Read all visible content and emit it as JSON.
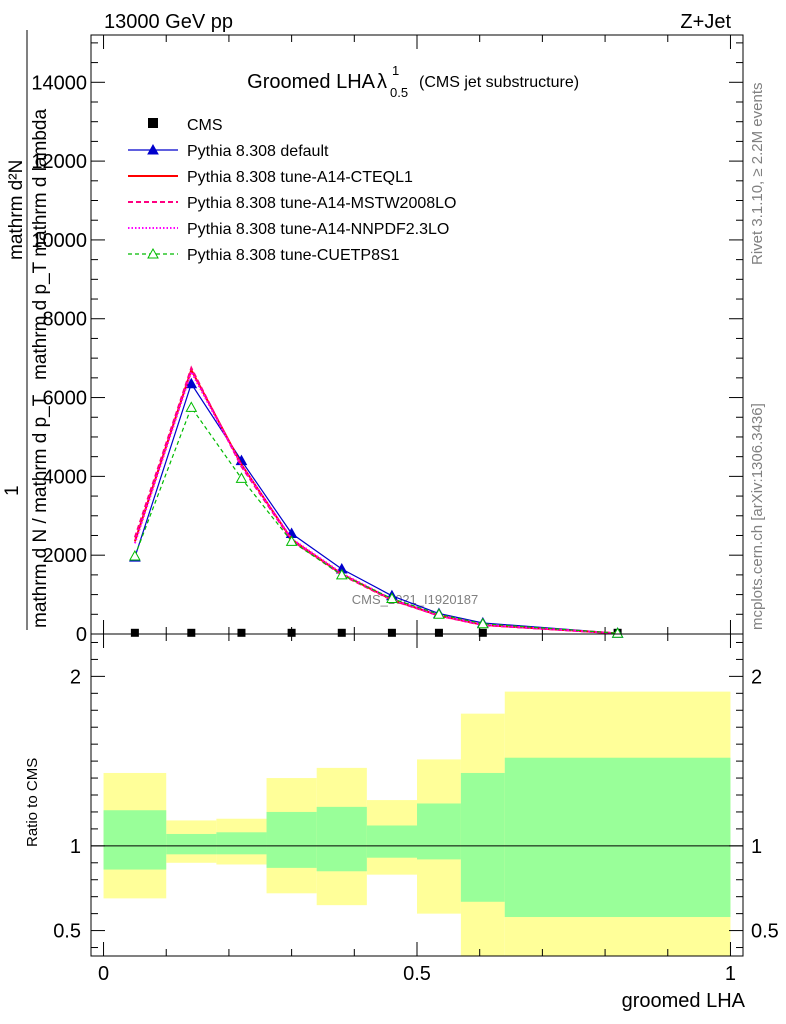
{
  "header": {
    "left": "13000 GeV pp",
    "right": "Z+Jet"
  },
  "side_labels": {
    "rivet": "Rivet 3.1.10, ≥ 2.2M events",
    "mcplots": "mcplots.cern.ch [arXiv:1306.3436]"
  },
  "watermark": "CMS_2021_I1920187",
  "chart_data": [
    {
      "type": "line",
      "title_main": "Groomed LHA",
      "title_lambda": "λ",
      "title_sup": "1",
      "title_sub": "0.5",
      "title_suffix": "(CMS jet substructure)",
      "ylabel_line1": "mathrm d²N",
      "ylabel_line2": "mathrm d p_T mathrm d lambda",
      "ylabel_prefix": "1",
      "ylabel_tail": "mathrm d N / mathrm d p_T",
      "ylim": [
        0,
        15200
      ],
      "xlim": [
        -0.02,
        1.02
      ],
      "yticks": [
        0,
        2000,
        4000,
        6000,
        8000,
        10000,
        12000,
        14000
      ],
      "yticklabels": [
        "0",
        "2000",
        "4000",
        "6000",
        "8000",
        "10000",
        "12000",
        "14000"
      ],
      "x": [
        0.05,
        0.14,
        0.22,
        0.3,
        0.38,
        0.46,
        0.535,
        0.605,
        0.82
      ],
      "series": [
        {
          "name": "CMS",
          "color": "#000000",
          "marker": "square",
          "values": [
            5,
            5,
            5,
            5,
            5,
            5,
            5,
            5,
            5
          ]
        },
        {
          "name": "Pythia 8.308 default",
          "color": "#0000cc",
          "marker": "triangle",
          "values": [
            1950,
            6350,
            4400,
            2550,
            1650,
            970,
            520,
            280,
            20
          ]
        },
        {
          "name": "Pythia 8.308 tune-A14-CTEQL1",
          "color": "#ff0000",
          "marker": "none",
          "values": [
            2350,
            6700,
            4300,
            2400,
            1520,
            870,
            470,
            230,
            15
          ]
        },
        {
          "name": "Pythia 8.308 tune-A14-MSTW2008LO",
          "color": "#ff0080",
          "marker": "none",
          "values": [
            2450,
            6750,
            4250,
            2380,
            1500,
            860,
            465,
            225,
            15
          ]
        },
        {
          "name": "Pythia 8.308 tune-A14-NNPDF2.3LO",
          "color": "#ff00ff",
          "marker": "none",
          "values": [
            2300,
            6650,
            4280,
            2420,
            1540,
            880,
            475,
            235,
            15
          ]
        },
        {
          "name": "Pythia 8.308 tune-CUETP8S1",
          "color": "#00bb00",
          "marker": "triangle-open",
          "values": [
            1980,
            5750,
            3950,
            2350,
            1500,
            900,
            500,
            260,
            20
          ]
        }
      ]
    },
    {
      "type": "band",
      "ylabel": "Ratio to CMS",
      "xlabel": "groomed LHA",
      "ylim": [
        0.35,
        2.25
      ],
      "xlim": [
        -0.02,
        1.02
      ],
      "yticks": [
        0.5,
        1,
        2
      ],
      "yticklabels": [
        "0.5",
        "1",
        "2"
      ],
      "xticks": [
        0,
        0.5,
        1
      ],
      "xticklabels": [
        "0",
        "0.5",
        "1"
      ],
      "reference": 1,
      "bins": [
        {
          "x0": 0.0,
          "x1": 0.1,
          "inner": [
            0.86,
            1.21
          ],
          "outer": [
            0.69,
            1.43
          ]
        },
        {
          "x0": 0.1,
          "x1": 0.18,
          "inner": [
            0.95,
            1.07
          ],
          "outer": [
            0.9,
            1.15
          ]
        },
        {
          "x0": 0.18,
          "x1": 0.26,
          "inner": [
            0.95,
            1.08
          ],
          "outer": [
            0.89,
            1.16
          ]
        },
        {
          "x0": 0.26,
          "x1": 0.34,
          "inner": [
            0.87,
            1.2
          ],
          "outer": [
            0.72,
            1.4
          ]
        },
        {
          "x0": 0.34,
          "x1": 0.42,
          "inner": [
            0.85,
            1.23
          ],
          "outer": [
            0.65,
            1.46
          ]
        },
        {
          "x0": 0.42,
          "x1": 0.5,
          "inner": [
            0.93,
            1.12
          ],
          "outer": [
            0.83,
            1.27
          ]
        },
        {
          "x0": 0.5,
          "x1": 0.57,
          "inner": [
            0.92,
            1.25
          ],
          "outer": [
            0.6,
            1.51
          ]
        },
        {
          "x0": 0.57,
          "x1": 0.64,
          "inner": [
            0.67,
            1.43
          ],
          "outer": [
            0.35,
            1.78
          ]
        },
        {
          "x0": 0.64,
          "x1": 1.0,
          "inner": [
            0.58,
            1.52
          ],
          "outer": [
            0.35,
            1.91
          ]
        }
      ],
      "colors": {
        "inner": "#99ff99",
        "outer": "#ffff99"
      }
    }
  ]
}
